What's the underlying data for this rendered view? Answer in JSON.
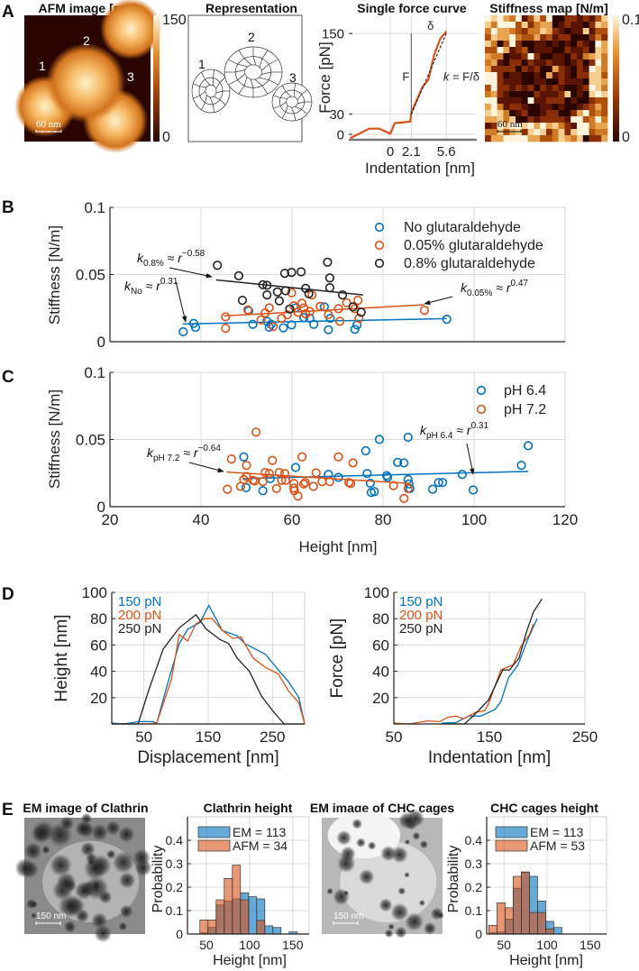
{
  "panel_labels": {
    "a": "A",
    "b": "B",
    "c": "C",
    "d": "D",
    "e": "E"
  },
  "afm_image": {
    "title": "AFM image [nm]",
    "particle_labels": [
      "1",
      "2",
      "3"
    ],
    "scalebar": "60 nm",
    "colorbar": {
      "max": "150",
      "min": "0"
    },
    "colormap": [
      "#2a0500",
      "#9a3a08",
      "#e8902a",
      "#fff6e0"
    ]
  },
  "representation": {
    "title": "Representation",
    "labels": [
      "1",
      "2",
      "3"
    ]
  },
  "stiffness_map": {
    "title": "Stiffness map [N/m]",
    "scalebar": "60 nm",
    "colorbar": {
      "max": "0.1",
      "min": "0"
    }
  },
  "em_images": [
    {
      "title": "EM image of Clathrin",
      "scalebar": "150 nm"
    },
    {
      "title": "EM image of CHC cages",
      "scalebar": "150 nm"
    }
  ],
  "chart_data": [
    {
      "type": "line",
      "title": "Single force curve",
      "xlabel": "Indentation [nm]",
      "ylabel": "Force [pN]",
      "xlim": [
        -4.15,
        8.65
      ],
      "ylim": [
        -8,
        177
      ],
      "xticks": [
        0,
        2.1,
        5.6
      ],
      "yticks": [
        0,
        30,
        150
      ],
      "grid": true,
      "series": [
        {
          "color": "#d95319",
          "x": [
            -4.0,
            -2.1,
            -1.1,
            0,
            0.45,
            2.0,
            2.1,
            3.2,
            3.8,
            4.4,
            5.0,
            5.6
          ],
          "y": [
            -5.4,
            8.5,
            8.5,
            1,
            16.5,
            19,
            32,
            70,
            81,
            119,
            142,
            153
          ]
        }
      ],
      "fit_line": {
        "x": [
          2.1,
          5.6
        ],
        "y": [
          30,
          150
        ]
      },
      "annotations": {
        "force": "F",
        "delta": "δ",
        "k": "k",
        "k_formula": " = F/δ"
      }
    },
    {
      "type": "scatter",
      "ylabel": "Stiffness [N/m]",
      "xlim": [
        20,
        120
      ],
      "ylim": [
        0,
        0.1
      ],
      "xticks": [
        20,
        40,
        60,
        80,
        100,
        120
      ],
      "show_xtick_labels": false,
      "yticks": [
        0,
        0.05,
        0.1
      ],
      "grid": true,
      "legend": "top-right",
      "series": [
        {
          "name": "No glutaraldehyde",
          "color": "#0072bd",
          "x": [
            36.1,
            38.4,
            38.8,
            50.5,
            51.4,
            54.5,
            55.0,
            55.4,
            58.1,
            59.9,
            60.8,
            62.6,
            63.9,
            64.8,
            67.1,
            68.0,
            68.4,
            73.8,
            74.3,
            94.0
          ],
          "y": [
            0.0074,
            0.0136,
            0.0107,
            0.023,
            0.0129,
            0.0152,
            0.0107,
            0.0129,
            0.0103,
            0.0125,
            0.0252,
            0.0179,
            0.0174,
            0.0129,
            0.0259,
            0.0089,
            0.0174,
            0.0092,
            0.0125,
            0.0167
          ],
          "fit": {
            "x": [
              36,
              94
            ],
            "y": [
              0.0132,
              0.0172
            ]
          }
        },
        {
          "name": "0.05% glutaraldehyde",
          "color": "#d95319",
          "x": [
            45.4,
            45.4,
            50.3,
            53.2,
            54.1,
            55.0,
            55.9,
            57.7,
            59.0,
            59.9,
            60.4,
            61.3,
            62.2,
            62.6,
            63.0,
            63.9,
            64.4,
            66.2,
            68.0,
            70.2,
            70.5,
            72.0,
            73.8,
            74.5,
            74.7,
            89.1
          ],
          "y": [
            0.0185,
            0.01,
            0.0237,
            0.0163,
            0.0214,
            0.0252,
            0.0112,
            0.0174,
            0.0201,
            0.0364,
            0.0268,
            0.0219,
            0.0286,
            0.0252,
            0.0208,
            0.0225,
            0.0348,
            0.0263,
            0.0201,
            0.0246,
            0.0152,
            0.029,
            0.0246,
            0.0308,
            0.0174,
            0.0234
          ],
          "fit": {
            "x": [
              45,
              89
            ],
            "y": [
              0.0192,
              0.0275
            ]
          }
        },
        {
          "name": "0.8% glutaraldehyde",
          "color": "#222222",
          "x": [
            43.6,
            48.3,
            49.1,
            53.6,
            54.5,
            54.5,
            56.8,
            57.2,
            58.4,
            58.6,
            59.9,
            62.0,
            59.5,
            63.0,
            63.7,
            67.8,
            68.3,
            68.3,
            71.1,
            73.4,
            75.2
          ],
          "y": [
            0.0569,
            0.0491,
            0.0308,
            0.0424,
            0.042,
            0.0348,
            0.0371,
            0.0304,
            0.0509,
            0.0379,
            0.0516,
            0.052,
            0.0243,
            0.0397,
            0.0357,
            0.0592,
            0.0475,
            0.0402,
            0.0348,
            0.0259,
            0.0219
          ],
          "fit": {
            "x": [
              43.3,
              75.6
            ],
            "y": [
              0.046,
              0.0348
            ]
          }
        }
      ],
      "annotations": [
        {
          "k": "k",
          "sub": "0.8%",
          "approx": " ≈ r",
          "exp": "−0.58"
        },
        {
          "k": "k",
          "sub": "No",
          "approx": " ≈ r",
          "exp": "0.31"
        },
        {
          "k": "k",
          "sub": "0.05%",
          "approx": " ≈ r",
          "exp": "0.47"
        }
      ]
    },
    {
      "type": "scatter",
      "xlabel": "Height [nm]",
      "ylabel": "Stiffness [N/m]",
      "xlim": [
        20,
        120
      ],
      "ylim": [
        0,
        0.1
      ],
      "xticks": [
        20,
        40,
        60,
        80,
        100,
        120
      ],
      "yticks": [
        0,
        0.05,
        0.1
      ],
      "grid": true,
      "legend": "top-right",
      "series": [
        {
          "name": "pH 6.4",
          "color": "#0072bd",
          "x": [
            49.4,
            49.9,
            53.6,
            55.2,
            60.8,
            68.0,
            70.2,
            76.2,
            76.5,
            77.2,
            77.4,
            78.1,
            79.2,
            80.8,
            81.0,
            83.2,
            84.6,
            85.5,
            85.5,
            85.7,
            85.9,
            90.9,
            92.2,
            93.1,
            97.4,
            99.8,
            110.4,
            111.9
          ],
          "y": [
            0.0371,
            0.0142,
            0.0119,
            0.0209,
            0.0292,
            0.024,
            0.0218,
            0.0416,
            0.0247,
            0.0175,
            0.0106,
            0.0112,
            0.0501,
            0.0231,
            0.0218,
            0.033,
            0.0326,
            0.0517,
            0.0202,
            0.0169,
            0.0135,
            0.013,
            0.018,
            0.018,
            0.024,
            0.0124,
            0.0308,
            0.0454
          ],
          "fit": {
            "x": [
              49.4,
              111.9
            ],
            "y": [
              0.0209,
              0.0263
            ]
          }
        },
        {
          "name": "pH 7.2",
          "color": "#d95319",
          "x": [
            45.8,
            46.7,
            48.7,
            49.4,
            50.0,
            50.0,
            51.4,
            51.8,
            52.1,
            53.6,
            54.1,
            55.0,
            55.7,
            56.6,
            57.2,
            57.7,
            58.4,
            58.6,
            60.4,
            60.4,
            60.5,
            61.3,
            62.2,
            62.6,
            62.9,
            64.7,
            65.3,
            66.6,
            68.3,
            70.2,
            72.5,
            72.9,
            73.4,
            82.3,
            84.6,
            85.5
          ],
          "y": [
            0.013,
            0.0355,
            0.0151,
            0.0202,
            0.0308,
            0.0225,
            0.0196,
            0.0191,
            0.0555,
            0.0187,
            0.0254,
            0.0247,
            0.0344,
            0.0135,
            0.0254,
            0.0196,
            0.0247,
            0.0196,
            0.0173,
            0.0139,
            0.0119,
            0.0079,
            0.0371,
            0.0169,
            0.018,
            0.0151,
            0.0252,
            0.0187,
            0.0187,
            0.0371,
            0.018,
            0.0173,
            0.0326,
            0.0157,
            0.0061,
            0.0135
          ],
          "fit": {
            "x": [
              45.6,
              85.9
            ],
            "y": [
              0.0258,
              0.0173
            ]
          }
        }
      ],
      "annotations": [
        {
          "k": "k",
          "sub": "pH 7.2",
          "approx": " ≈ r",
          "exp": "−0.64"
        },
        {
          "k": "k",
          "sub": "pH 6.4",
          "approx": " ≈ r",
          "exp": "0.31"
        }
      ]
    },
    {
      "type": "line",
      "xlabel": "Displacement [nm]",
      "ylabel": "Height [nm]",
      "xlim": [
        0,
        300
      ],
      "ylim": [
        0,
        100
      ],
      "xticks": [
        50,
        150,
        250
      ],
      "yticks": [
        20,
        40,
        60,
        80,
        100
      ],
      "grid": true,
      "legend": "top-left",
      "series": [
        {
          "name": "150 pN",
          "color": "#0072bd",
          "x": [
            0,
            16,
            29,
            41,
            64,
            70,
            86,
            105,
            118,
            137,
            151,
            172,
            195,
            207,
            223,
            239,
            259,
            275,
            291,
            300
          ],
          "y": [
            0.7,
            0,
            0.7,
            1.8,
            1.8,
            0.7,
            29,
            61,
            72,
            77,
            90,
            71,
            67,
            61,
            57,
            53,
            41,
            32,
            20,
            0
          ]
        },
        {
          "name": "200 pN",
          "color": "#d95319",
          "x": [
            0,
            57,
            70,
            93,
            105,
            118,
            131,
            144,
            156,
            172,
            188,
            201,
            220,
            239,
            259,
            275,
            291,
            300
          ],
          "y": [
            0,
            0,
            0.7,
            34,
            68,
            63,
            76,
            80,
            80,
            71,
            65,
            66,
            50,
            43,
            38,
            25,
            16,
            0
          ]
        },
        {
          "name": "250 pN",
          "color": "#222222",
          "x": [
            0,
            41,
            57,
            80,
            105,
            131,
            147,
            169,
            182,
            195,
            214,
            233,
            252,
            268,
            300
          ],
          "y": [
            0,
            0,
            25,
            57,
            73,
            83,
            72,
            64,
            61,
            50,
            40,
            21,
            9,
            0,
            0
          ]
        }
      ]
    },
    {
      "type": "line",
      "xlabel": "Indentation [nm]",
      "ylabel": "Force [pN]",
      "xlim": [
        50,
        250
      ],
      "ylim": [
        0,
        100
      ],
      "xticks": [
        50,
        150,
        250
      ],
      "yticks": [
        20,
        40,
        60,
        80,
        100
      ],
      "grid": true,
      "legend": "top-left",
      "series": [
        {
          "name": "150 pN",
          "color": "#0072bd",
          "x": [
            100,
            115,
            128,
            141,
            156,
            162,
            170,
            180,
            190,
            200
          ],
          "y": [
            0.7,
            1,
            6,
            6,
            11,
            17,
            35,
            45,
            64,
            80
          ]
        },
        {
          "name": "200 pN",
          "color": "#d95319",
          "x": [
            50,
            66,
            85,
            98,
            106,
            115,
            123,
            136,
            145,
            149,
            162,
            175,
            183,
            192,
            196
          ],
          "y": [
            0.7,
            0,
            2.3,
            1.8,
            5,
            6,
            4,
            9,
            10,
            15,
            41,
            45,
            59,
            68,
            76
          ]
        },
        {
          "name": "250 pN",
          "color": "#222222",
          "x": [
            103,
            124,
            133,
            149,
            164,
            171,
            181,
            188,
            196,
            205
          ],
          "y": [
            0,
            0,
            6,
            18,
            41,
            41,
            50,
            68,
            85,
            95
          ]
        }
      ]
    },
    {
      "type": "bar",
      "title": "Clathrin height",
      "xlabel": "Height [nm]",
      "ylabel": "Probability",
      "xlim": [
        28,
        169
      ],
      "ylim": [
        0,
        0.5
      ],
      "xticks": [
        50,
        100,
        150
      ],
      "yticks": [
        0,
        0.1,
        0.2,
        0.3,
        0.4
      ],
      "grid": true,
      "legend": "top-left",
      "bin_start": 42.4,
      "bin_width": 9.4,
      "series": [
        {
          "name": "EM = 113",
          "color": "#0072bd",
          "values": [
            0.005,
            0.028,
            0.124,
            0.14,
            0.15,
            0.176,
            0.159,
            0.15,
            0.035,
            0.028,
            0,
            0.009
          ]
        },
        {
          "name": "AFM = 34",
          "color": "#d95319",
          "values": [
            0.06,
            0.06,
            0.146,
            0.237,
            0.294,
            0.146,
            0,
            0.058,
            0,
            0,
            0,
            0
          ]
        }
      ]
    },
    {
      "type": "bar",
      "title": "CHC cages height",
      "xlabel": "Height [nm]",
      "ylabel": "Probability",
      "xlim": [
        30,
        169
      ],
      "ylim": [
        0,
        0.5
      ],
      "xticks": [
        50,
        100,
        150
      ],
      "yticks": [
        0,
        0.1,
        0.2,
        0.3,
        0.4
      ],
      "grid": true,
      "legend": "top-left",
      "bin_start": 32.6,
      "bin_width": 9.4,
      "series": [
        {
          "name": "EM = 113",
          "color": "#0072bd",
          "values": [
            0.005,
            0.009,
            0.064,
            0.195,
            0.262,
            0.246,
            0.141,
            0.054,
            0.028
          ]
        },
        {
          "name": "AFM = 53",
          "color": "#d95319",
          "values": [
            0.037,
            0.133,
            0.112,
            0.246,
            0.265,
            0.092,
            0.092,
            0.022,
            0
          ]
        }
      ]
    }
  ]
}
